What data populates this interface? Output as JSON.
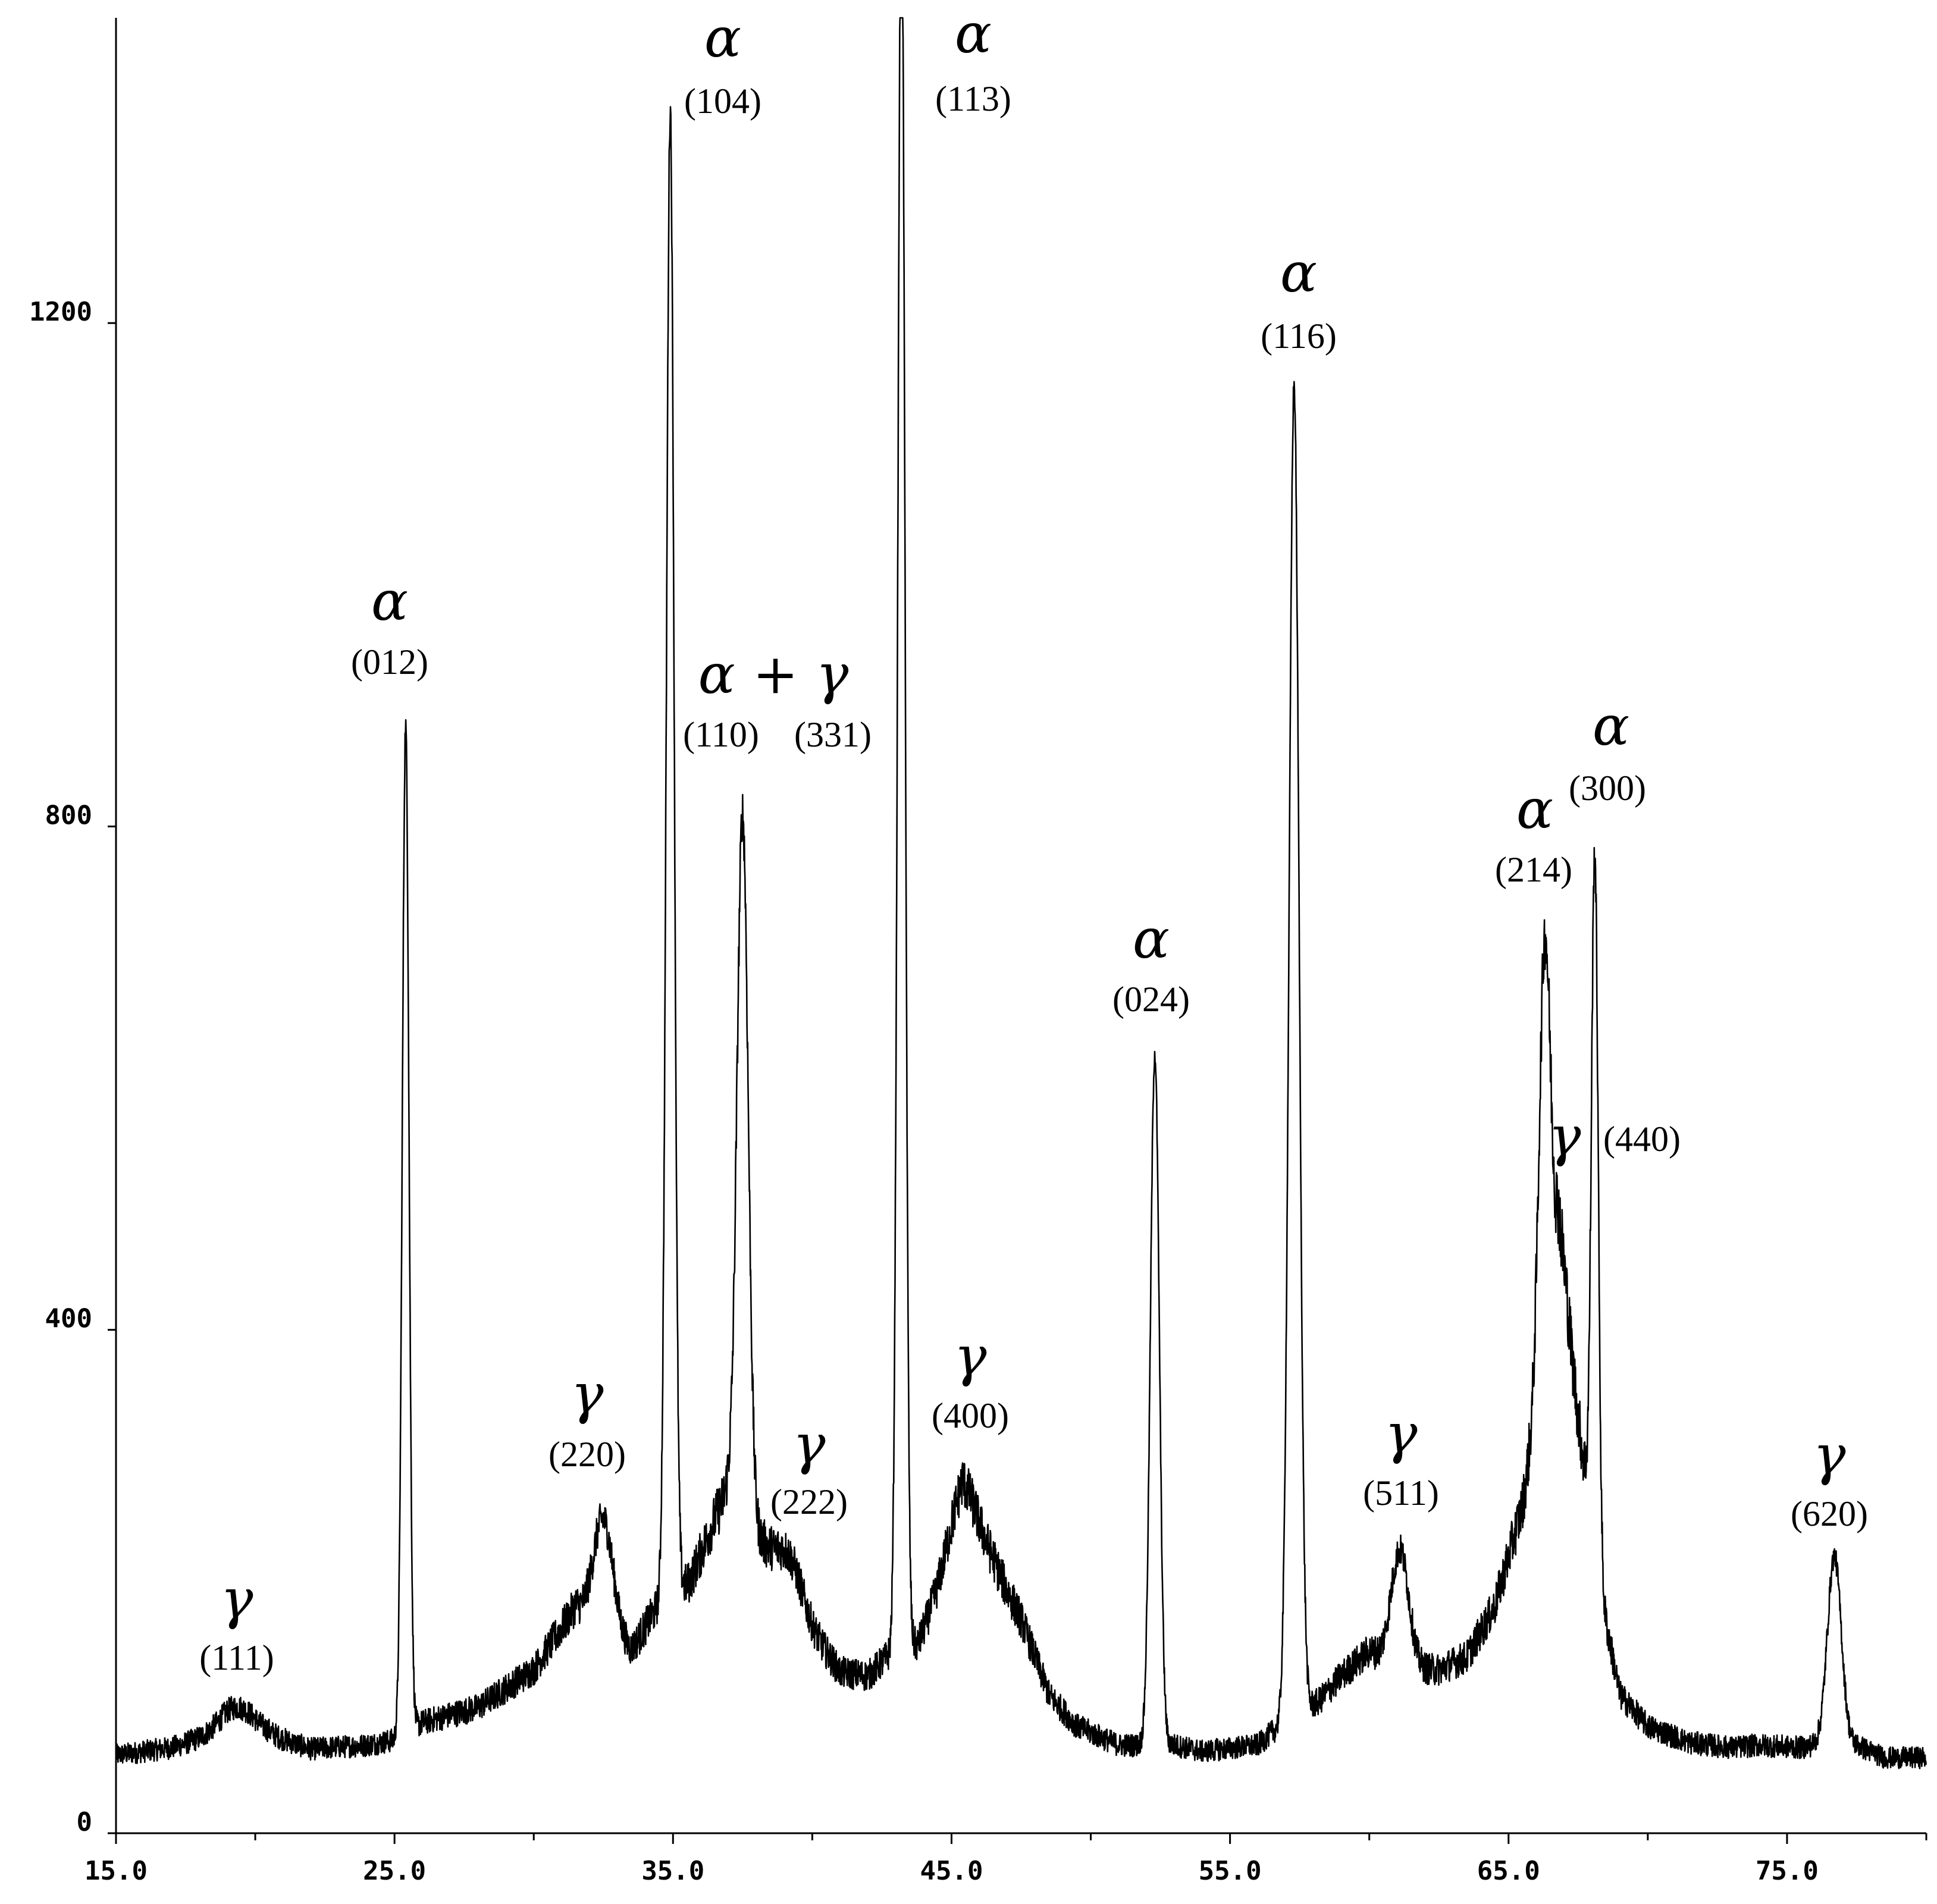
{
  "chart_data": {
    "type": "line",
    "title": "",
    "xlabel": "",
    "ylabel": "",
    "xlim": [
      15.0,
      80.0
    ],
    "ylim": [
      0,
      1400
    ],
    "x_ticks": [
      15.0,
      25.0,
      35.0,
      45.0,
      55.0,
      65.0,
      75.0
    ],
    "x_tick_labels": [
      "15.0",
      "25.0",
      "35.0",
      "45.0",
      "55.0",
      "65.0",
      "75.0"
    ],
    "y_ticks": [
      0,
      400,
      800,
      1200
    ],
    "y_tick_labels": [
      "0",
      "400",
      "800",
      "1200"
    ],
    "grid": false,
    "line_color": "#000000",
    "baseline": [
      [
        15.0,
        62
      ],
      [
        17.0,
        68
      ],
      [
        19.0,
        82
      ],
      [
        20.5,
        78
      ],
      [
        22.0,
        67
      ],
      [
        24.0,
        70
      ],
      [
        25.0,
        74
      ],
      [
        26.0,
        88
      ],
      [
        28.0,
        100
      ],
      [
        30.0,
        130
      ],
      [
        31.5,
        180
      ],
      [
        33.5,
        145
      ],
      [
        34.3,
        175
      ],
      [
        35.6,
        200
      ],
      [
        36.5,
        250
      ],
      [
        37.0,
        275
      ],
      [
        38.2,
        230
      ],
      [
        39.0,
        200
      ],
      [
        40.0,
        160
      ],
      [
        41.0,
        128
      ],
      [
        42.0,
        125
      ],
      [
        42.7,
        140
      ],
      [
        43.8,
        150
      ],
      [
        44.5,
        190
      ],
      [
        45.4,
        255
      ],
      [
        46.5,
        215
      ],
      [
        47.5,
        170
      ],
      [
        48.5,
        110
      ],
      [
        49.5,
        85
      ],
      [
        51.0,
        70
      ],
      [
        52.0,
        70
      ],
      [
        53.0,
        70
      ],
      [
        54.0,
        65
      ],
      [
        56.0,
        70
      ],
      [
        56.5,
        80
      ],
      [
        58.2,
        105
      ],
      [
        59.0,
        125
      ],
      [
        60.0,
        145
      ],
      [
        61.0,
        130
      ],
      [
        62.5,
        130
      ],
      [
        63.5,
        140
      ],
      [
        64.5,
        180
      ],
      [
        65.5,
        260
      ],
      [
        66.0,
        340
      ],
      [
        66.8,
        450
      ],
      [
        67.5,
        330
      ],
      [
        68.3,
        190
      ],
      [
        69.0,
        110
      ],
      [
        70.0,
        85
      ],
      [
        71.5,
        72
      ],
      [
        73.0,
        68
      ],
      [
        74.0,
        70
      ],
      [
        75.5,
        68
      ],
      [
        76.0,
        70
      ],
      [
        77.5,
        70
      ],
      [
        78.5,
        60
      ],
      [
        80.0,
        60
      ]
    ],
    "peaks": [
      {
        "x": 19.4,
        "y": 100,
        "w": 0.6
      },
      {
        "x": 25.4,
        "y": 880,
        "w": 0.12
      },
      {
        "x": 32.5,
        "y": 250,
        "w": 0.35
      },
      {
        "x": 34.9,
        "y": 1370,
        "w": 0.14
      },
      {
        "x": 37.5,
        "y": 810,
        "w": 0.2
      },
      {
        "x": 39.2,
        "y": 220,
        "w": 0.45
      },
      {
        "x": 43.2,
        "y": 1570,
        "w": 0.13
      },
      {
        "x": 45.4,
        "y": 280,
        "w": 0.55
      },
      {
        "x": 52.3,
        "y": 620,
        "w": 0.16
      },
      {
        "x": 57.3,
        "y": 1150,
        "w": 0.18
      },
      {
        "x": 61.1,
        "y": 225,
        "w": 0.32
      },
      {
        "x": 66.3,
        "y": 710,
        "w": 0.2
      },
      {
        "x": 66.9,
        "y": 470,
        "w": 0.25
      },
      {
        "x": 68.1,
        "y": 780,
        "w": 0.12
      },
      {
        "x": 76.7,
        "y": 220,
        "w": 0.25
      }
    ],
    "annotations": [
      {
        "phase": "γ",
        "hkl": "(111)",
        "x": 19.4
      },
      {
        "phase": "α",
        "hkl": "(012)",
        "x": 25.4
      },
      {
        "phase": "γ",
        "hkl": "(220)",
        "x": 32.5
      },
      {
        "phase": "α",
        "hkl": "(104)",
        "x": 36.9
      },
      {
        "phase": "α + γ",
        "hkl": "(110)",
        "hkl2": "(331)",
        "x": 37.5
      },
      {
        "phase": "γ",
        "hkl": "(222)",
        "x": 39.2
      },
      {
        "phase": "α",
        "hkl": "(113)",
        "x": 45.9
      },
      {
        "phase": "γ",
        "hkl": "(400)",
        "x": 45.4
      },
      {
        "phase": "α",
        "hkl": "(024)",
        "x": 52.3
      },
      {
        "phase": "α",
        "hkl": "(116)",
        "x": 57.3
      },
      {
        "phase": "γ",
        "hkl": "(511)",
        "x": 61.1
      },
      {
        "phase": "α",
        "hkl": "(214)",
        "x": 66.3
      },
      {
        "phase": "γ",
        "hkl": "(440)",
        "x": 67.6
      },
      {
        "phase": "α",
        "hkl": "(300)",
        "x": 68.6
      },
      {
        "phase": "γ",
        "hkl": "(620)",
        "x": 76.7
      }
    ]
  }
}
